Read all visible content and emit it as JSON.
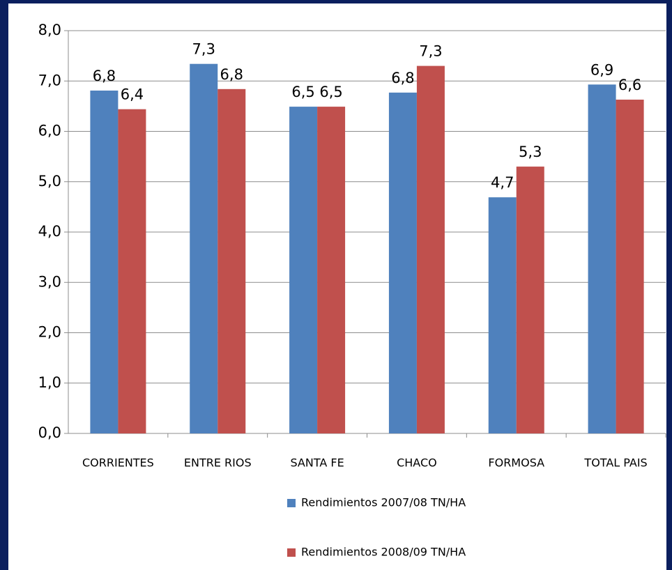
{
  "chart_data": {
    "type": "bar",
    "categories": [
      "CORRIENTES",
      "ENTRE RIOS",
      "SANTA FE",
      "CHACO",
      "FORMOSA",
      "TOTAL PAIS"
    ],
    "series": [
      {
        "name": "Rendimientos 2007/08 TN/HA",
        "color": "#4f81bd",
        "values": [
          6.81,
          7.34,
          6.49,
          6.77,
          4.69,
          6.93
        ],
        "value_labels": [
          "6,8",
          "7,3",
          "6,5",
          "6,8",
          "4,7",
          "6,9"
        ]
      },
      {
        "name": "Rendimientos 2008/09 TN/HA",
        "color": "#c0504d",
        "values": [
          6.44,
          6.84,
          6.49,
          7.3,
          5.3,
          6.63
        ],
        "value_labels": [
          "6,4",
          "6,8",
          "6,5",
          "7,3",
          "5,3",
          "6,6"
        ]
      }
    ],
    "ylim": [
      0,
      8
    ],
    "yticks": [
      {
        "value": 0,
        "label": "0,0"
      },
      {
        "value": 1,
        "label": "1,0"
      },
      {
        "value": 2,
        "label": "2,0"
      },
      {
        "value": 3,
        "label": "3,0"
      },
      {
        "value": 4,
        "label": "4,0"
      },
      {
        "value": 5,
        "label": "5,0"
      },
      {
        "value": 6,
        "label": "6,0"
      },
      {
        "value": 7,
        "label": "7,0"
      },
      {
        "value": 8,
        "label": "8,0"
      }
    ],
    "grid": true
  }
}
